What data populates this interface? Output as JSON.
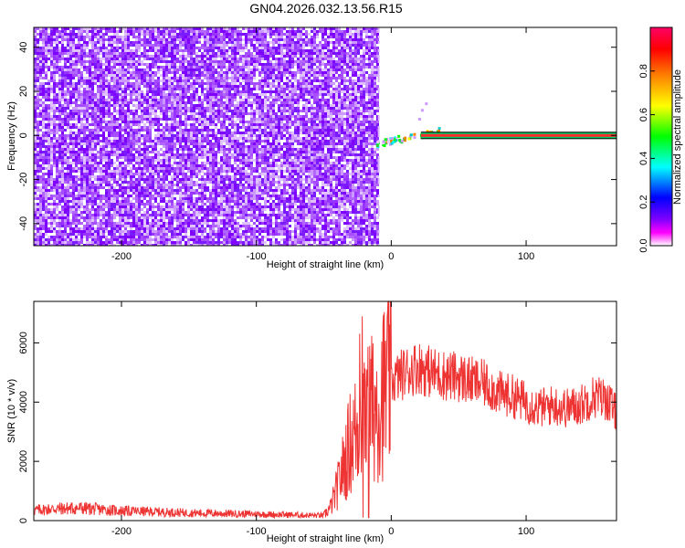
{
  "title": "GN04.2026.032.13.56.R15",
  "chart_data": [
    {
      "type": "heatmap",
      "xlabel": "Height of straight line (km)",
      "ylabel": "Frequency (Hz)",
      "xlim": [
        -265,
        167
      ],
      "ylim": [
        -50,
        49
      ],
      "xticks": [
        -200,
        -100,
        0,
        100
      ],
      "yticks": [
        -40,
        -20,
        0,
        20,
        40
      ],
      "noise_region_x": [
        -265,
        -10
      ],
      "signal_band": {
        "x": [
          22,
          167
        ],
        "frequency": 0,
        "amplitude": 0.95
      },
      "transition_region": {
        "x": [
          -12,
          35
        ],
        "frequency": [
          -4,
          2
        ],
        "amplitude": [
          0.3,
          0.8
        ]
      },
      "colorbar": {
        "label": "Normalized spectral amplitude",
        "range": [
          0,
          1
        ],
        "ticks": [
          0.0,
          0.2,
          0.4,
          0.6,
          0.8
        ],
        "colormap": [
          "#ffffff",
          "#ff00ff",
          "#8000ff",
          "#0000ff",
          "#00ffff",
          "#00ff00",
          "#ffff00",
          "#ff8000",
          "#ff0000",
          "#ff0066"
        ]
      }
    },
    {
      "type": "line",
      "xlabel": "Height of straight line (km)",
      "ylabel": "SNR (10 * v/v)",
      "xlim": [
        -265,
        167
      ],
      "ylim": [
        0,
        7400
      ],
      "xticks": [
        -200,
        -100,
        0,
        100
      ],
      "yticks": [
        0,
        2000,
        4000,
        6000
      ],
      "color": "#ee3333",
      "series": [
        {
          "x": [
            -265,
            -250,
            -230,
            -200,
            -150,
            -100,
            -60,
            -50,
            -45,
            -40,
            -35,
            -30,
            -25,
            -20,
            -15,
            -10,
            -5,
            0,
            10,
            20,
            30,
            40,
            50,
            60,
            70,
            80,
            90,
            100,
            110,
            120,
            130,
            140,
            150,
            160,
            167
          ],
          "y": [
            350,
            400,
            420,
            330,
            260,
            220,
            180,
            170,
            450,
            1100,
            1900,
            2700,
            3100,
            3500,
            3700,
            4100,
            4400,
            4700,
            5000,
            5200,
            5000,
            4900,
            4850,
            4700,
            4600,
            4300,
            4200,
            4000,
            3800,
            3900,
            3800,
            3900,
            4200,
            4100,
            3600
          ]
        }
      ]
    }
  ]
}
